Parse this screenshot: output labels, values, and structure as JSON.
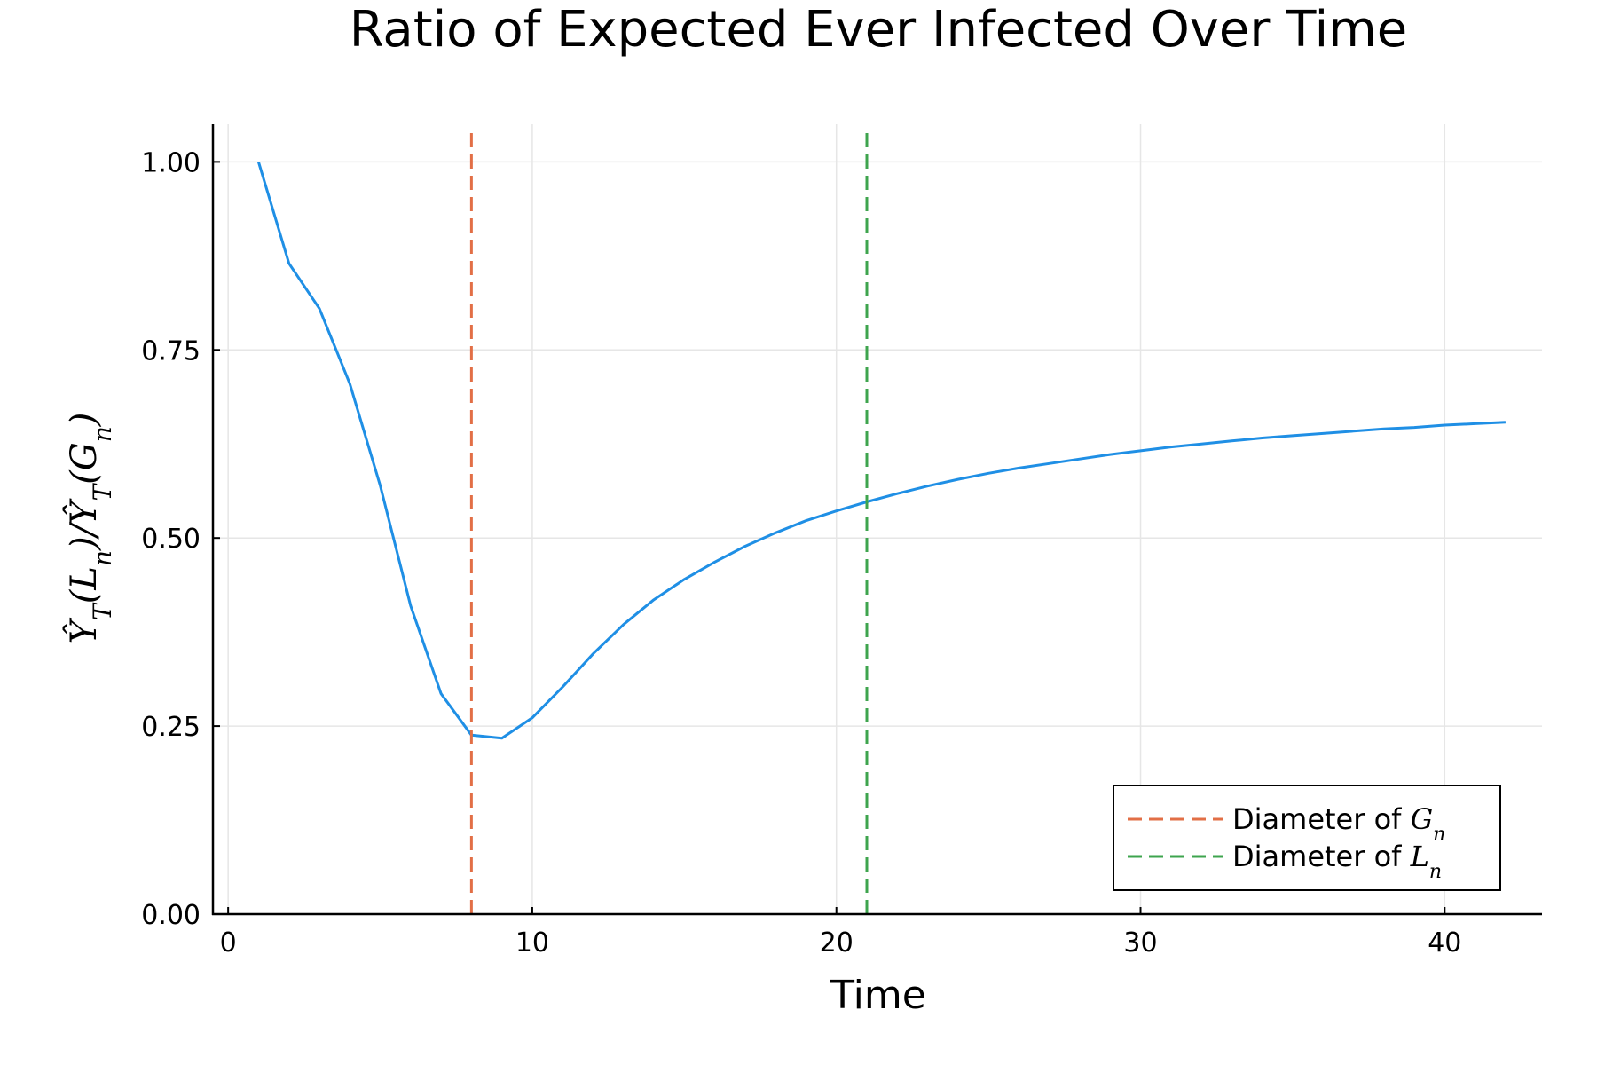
{
  "chart_data": {
    "type": "line",
    "title": "Ratio of Expected Ever Infected Over Time",
    "xlabel": "Time",
    "ylabel": "Ŷ_T(L_n)/Ŷ_T(G_n)",
    "xlim": [
      -0.5,
      43.2
    ],
    "ylim": [
      0,
      1.05
    ],
    "xticks": [
      0,
      10,
      20,
      30,
      40
    ],
    "xtick_labels": [
      "0",
      "10",
      "20",
      "30",
      "40"
    ],
    "yticks": [
      0,
      0.25,
      0.5,
      0.75,
      1.0
    ],
    "ytick_labels": [
      "0.00",
      "0.25",
      "0.50",
      "0.75",
      "1.00"
    ],
    "grid": true,
    "legend_position": "bottom-right",
    "series": [
      {
        "color": "#1f8fe5",
        "x": [
          1,
          2,
          3,
          4,
          5,
          6,
          7,
          8,
          9,
          10,
          11,
          12,
          13,
          14,
          15,
          16,
          17,
          18,
          19,
          20,
          21,
          22,
          23,
          24,
          25,
          26,
          27,
          28,
          29,
          30,
          31,
          32,
          33,
          34,
          35,
          36,
          37,
          38,
          39,
          40,
          41,
          42
        ],
        "y": [
          1.0,
          0.865,
          0.805,
          0.705,
          0.57,
          0.41,
          0.293,
          0.238,
          0.234,
          0.261,
          0.302,
          0.346,
          0.385,
          0.418,
          0.445,
          0.468,
          0.489,
          0.507,
          0.523,
          0.536,
          0.548,
          0.559,
          0.569,
          0.578,
          0.586,
          0.593,
          0.599,
          0.605,
          0.611,
          0.616,
          0.621,
          0.625,
          0.629,
          0.633,
          0.636,
          0.639,
          0.642,
          0.645,
          0.647,
          0.65,
          0.652,
          0.654
        ]
      }
    ],
    "vlines": [
      {
        "x": 8,
        "color": "#e26f46",
        "legend_prefix": "Diameter of ",
        "legend_var": "G",
        "legend_sub": "n"
      },
      {
        "x": 21,
        "color": "#3ea44e",
        "legend_prefix": "Diameter of ",
        "legend_var": "L",
        "legend_sub": "n"
      }
    ]
  }
}
